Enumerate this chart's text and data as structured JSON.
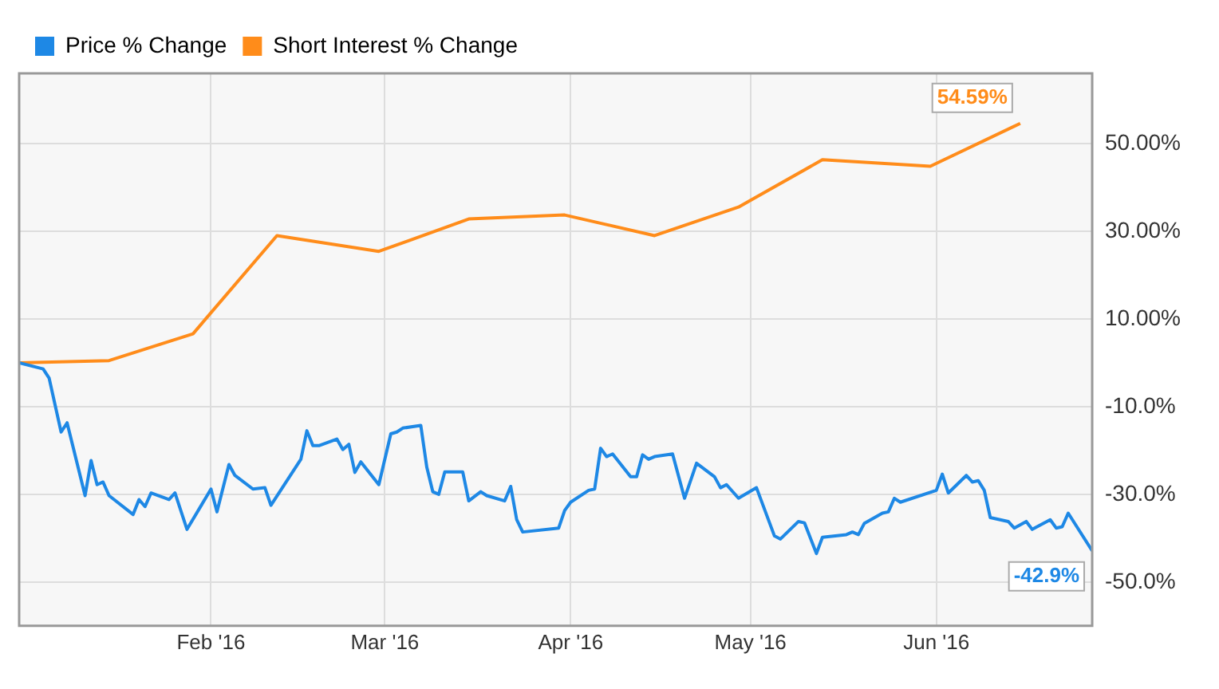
{
  "chart_data": {
    "type": "line",
    "xlim": [
      "2015-12-31",
      "2016-06-27"
    ],
    "xticks": [
      {
        "value": "2016-02-01",
        "label": "Feb '16"
      },
      {
        "value": "2016-03-01",
        "label": "Mar '16"
      },
      {
        "value": "2016-04-01",
        "label": "Apr '16"
      },
      {
        "value": "2016-05-01",
        "label": "May '16"
      },
      {
        "value": "2016-06-01",
        "label": "Jun '16"
      }
    ],
    "ylim": [
      -60,
      66
    ],
    "yticks": [
      {
        "value": -50,
        "label": "-50.0%"
      },
      {
        "value": -30,
        "label": "-30.0%"
      },
      {
        "value": -10,
        "label": "-10.0%"
      },
      {
        "value": 10,
        "label": "10.00%"
      },
      {
        "value": 30,
        "label": "30.00%"
      },
      {
        "value": 50,
        "label": "50.00%"
      }
    ],
    "grid": true,
    "legend": "top left",
    "marker": "none",
    "series": [
      {
        "name": "Price % Change",
        "color": "#1e88e5",
        "x": [
          "2015-12-31",
          "2016-01-04",
          "2016-01-05",
          "2016-01-07",
          "2016-01-08",
          "2016-01-11",
          "2016-01-12",
          "2016-01-13",
          "2016-01-14",
          "2016-01-15",
          "2016-01-19",
          "2016-01-20",
          "2016-01-21",
          "2016-01-22",
          "2016-01-25",
          "2016-01-26",
          "2016-01-28",
          "2016-02-01",
          "2016-02-02",
          "2016-02-04",
          "2016-02-05",
          "2016-02-08",
          "2016-02-10",
          "2016-02-11",
          "2016-02-16",
          "2016-02-17",
          "2016-02-18",
          "2016-02-19",
          "2016-02-22",
          "2016-02-23",
          "2016-02-24",
          "2016-02-25",
          "2016-02-26",
          "2016-02-29",
          "2016-03-02",
          "2016-03-03",
          "2016-03-04",
          "2016-03-07",
          "2016-03-08",
          "2016-03-09",
          "2016-03-10",
          "2016-03-11",
          "2016-03-14",
          "2016-03-15",
          "2016-03-17",
          "2016-03-18",
          "2016-03-21",
          "2016-03-22",
          "2016-03-23",
          "2016-03-24",
          "2016-03-30",
          "2016-03-31",
          "2016-04-01",
          "2016-04-04",
          "2016-04-05",
          "2016-04-06",
          "2016-04-07",
          "2016-04-08",
          "2016-04-11",
          "2016-04-12",
          "2016-04-13",
          "2016-04-14",
          "2016-04-15",
          "2016-04-18",
          "2016-04-20",
          "2016-04-22",
          "2016-04-25",
          "2016-04-26",
          "2016-04-27",
          "2016-04-29",
          "2016-05-02",
          "2016-05-05",
          "2016-05-06",
          "2016-05-09",
          "2016-05-10",
          "2016-05-12",
          "2016-05-13",
          "2016-05-17",
          "2016-05-18",
          "2016-05-19",
          "2016-05-20",
          "2016-05-23",
          "2016-05-24",
          "2016-05-25",
          "2016-05-26",
          "2016-06-01",
          "2016-06-02",
          "2016-06-03",
          "2016-06-06",
          "2016-06-07",
          "2016-06-08",
          "2016-06-09",
          "2016-06-10",
          "2016-06-13",
          "2016-06-14",
          "2016-06-16",
          "2016-06-17",
          "2016-06-20",
          "2016-06-21",
          "2016-06-22",
          "2016-06-23",
          "2016-06-27"
        ],
        "values": [
          0,
          -1.4,
          -3.5,
          -15.8,
          -13.7,
          -30.3,
          -22.3,
          -27.8,
          -27.2,
          -30.3,
          -34.6,
          -31.2,
          -32.8,
          -29.7,
          -31.2,
          -29.7,
          -38,
          -28.8,
          -34,
          -23.2,
          -25.7,
          -28.8,
          -28.5,
          -32.5,
          -22,
          -15.5,
          -18.9,
          -18.9,
          -17.4,
          -19.8,
          -18.6,
          -25,
          -22.6,
          -27.8,
          -16.2,
          -15.8,
          -14.9,
          -14.3,
          -23.8,
          -29.4,
          -30,
          -24.9,
          -24.9,
          -31.5,
          -29.4,
          -30.3,
          -31.5,
          -28.2,
          -35.8,
          -38.6,
          -37.7,
          -33.7,
          -31.8,
          -29.1,
          -28.8,
          -19.5,
          -21.4,
          -20.8,
          -26,
          -26,
          -21,
          -22,
          -21.4,
          -20.8,
          -30.9,
          -22.9,
          -26,
          -28.5,
          -27.8,
          -30.9,
          -28.5,
          -39.5,
          -40.2,
          -36.2,
          -36.5,
          -43.5,
          -39.8,
          -39.2,
          -38.6,
          -39.2,
          -36.6,
          -34.3,
          -34,
          -30.9,
          -31.8,
          -29.1,
          -25.4,
          -29.7,
          -25.7,
          -27.2,
          -26.9,
          -29.1,
          -35.3,
          -36.2,
          -37.7,
          -36.2,
          -38,
          -35.8,
          -37.7,
          -37.4,
          -34.3,
          -42.9
        ],
        "value_labels": [
          null,
          null,
          null,
          null,
          null,
          null,
          null,
          null,
          null,
          null,
          null,
          null,
          null,
          null,
          null,
          null,
          null,
          null,
          null,
          null,
          null,
          null,
          null,
          null,
          null,
          null,
          null,
          null,
          null,
          null,
          null,
          null,
          null,
          null,
          null,
          null,
          null,
          null,
          null,
          null,
          null,
          null,
          null,
          null,
          null,
          null,
          null,
          null,
          null,
          null,
          null,
          null,
          null,
          null,
          null,
          null,
          null,
          null,
          null,
          null,
          null,
          null,
          null,
          null,
          null,
          null,
          null,
          null,
          null,
          null,
          null,
          null,
          null,
          null,
          null,
          null,
          null,
          null,
          null,
          null,
          null,
          null,
          null,
          null,
          null,
          null,
          null,
          null,
          null,
          null,
          null,
          null,
          null,
          null,
          null,
          null,
          null,
          null,
          null,
          null,
          null,
          "-42.9%"
        ]
      },
      {
        "name": "Short Interest % Change",
        "color": "#ff8c1a",
        "x": [
          "2015-12-31",
          "2016-01-15",
          "2016-01-29",
          "2016-02-12",
          "2016-02-29",
          "2016-03-15",
          "2016-03-31",
          "2016-04-15",
          "2016-04-29",
          "2016-05-13",
          "2016-05-31",
          "2016-06-15"
        ],
        "values": [
          0,
          0.5,
          6.6,
          29,
          25.4,
          32.8,
          33.7,
          29,
          35.5,
          46.3,
          44.8,
          54.59
        ],
        "value_labels": [
          null,
          null,
          null,
          null,
          null,
          null,
          null,
          null,
          null,
          null,
          null,
          "54.59%"
        ]
      }
    ]
  }
}
